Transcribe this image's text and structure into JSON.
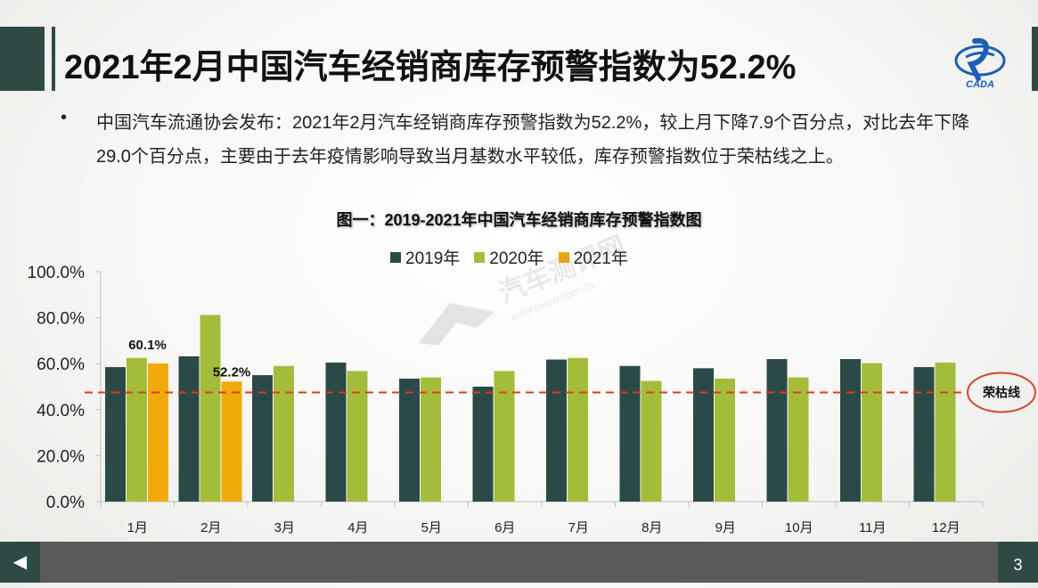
{
  "slide": {
    "title": "2021年2月中国汽车经销商库存预警指数为52.2%",
    "logo_text": "CADA",
    "bullet_symbol": "•",
    "paragraph": "中国汽车流通协会发布：2021年2月汽车经销商库存预警指数为52.2%，较上月下降7.9个百分点，对比去年下降29.0个百分点，主要由于去年疫情影响导致当月基数水平较低，库存预警指数位于荣枯线之上。",
    "page_number": "3",
    "nav_back_icon": "◀",
    "watermark_text": "汽车测评网",
    "watermark_url": "autoreview.com.cn"
  },
  "colors": {
    "series_2019": "#2b4a47",
    "series_2020": "#a3bd3b",
    "series_2021": "#f0aa0a",
    "threshold_line": "#e03c1e",
    "threshold_circle": "#d04a2a"
  },
  "chart_data": {
    "type": "bar",
    "title": "图一：2019-2021年中国汽车经销商库存预警指数图",
    "categories": [
      "1月",
      "2月",
      "3月",
      "4月",
      "5月",
      "6月",
      "7月",
      "8月",
      "9月",
      "10月",
      "11月",
      "12月"
    ],
    "series": [
      {
        "name": "2019年",
        "values": [
          58.5,
          63.2,
          55.0,
          60.5,
          53.5,
          50.0,
          61.8,
          59.0,
          58.0,
          62.0,
          62.0,
          58.5
        ]
      },
      {
        "name": "2020年",
        "values": [
          62.5,
          81.2,
          59.0,
          56.8,
          54.0,
          56.8,
          62.5,
          52.5,
          53.5,
          54.0,
          60.2,
          60.5
        ]
      },
      {
        "name": "2021年",
        "values": [
          60.1,
          52.2,
          null,
          null,
          null,
          null,
          null,
          null,
          null,
          null,
          null,
          null
        ]
      }
    ],
    "data_labels": [
      {
        "series": "2021年",
        "category": "1月",
        "text": "60.1%"
      },
      {
        "series": "2021年",
        "category": "2月",
        "text": "52.2%"
      }
    ],
    "ylim": [
      0,
      100
    ],
    "yticks": [
      0,
      20,
      40,
      60,
      80,
      100
    ],
    "ytick_labels": [
      "0.0%",
      "20.0%",
      "40.0%",
      "60.0%",
      "80.0%",
      "100.0%"
    ],
    "threshold": {
      "value": 47.5,
      "label": "荣枯线"
    },
    "legend_position": "top",
    "grid": false
  }
}
